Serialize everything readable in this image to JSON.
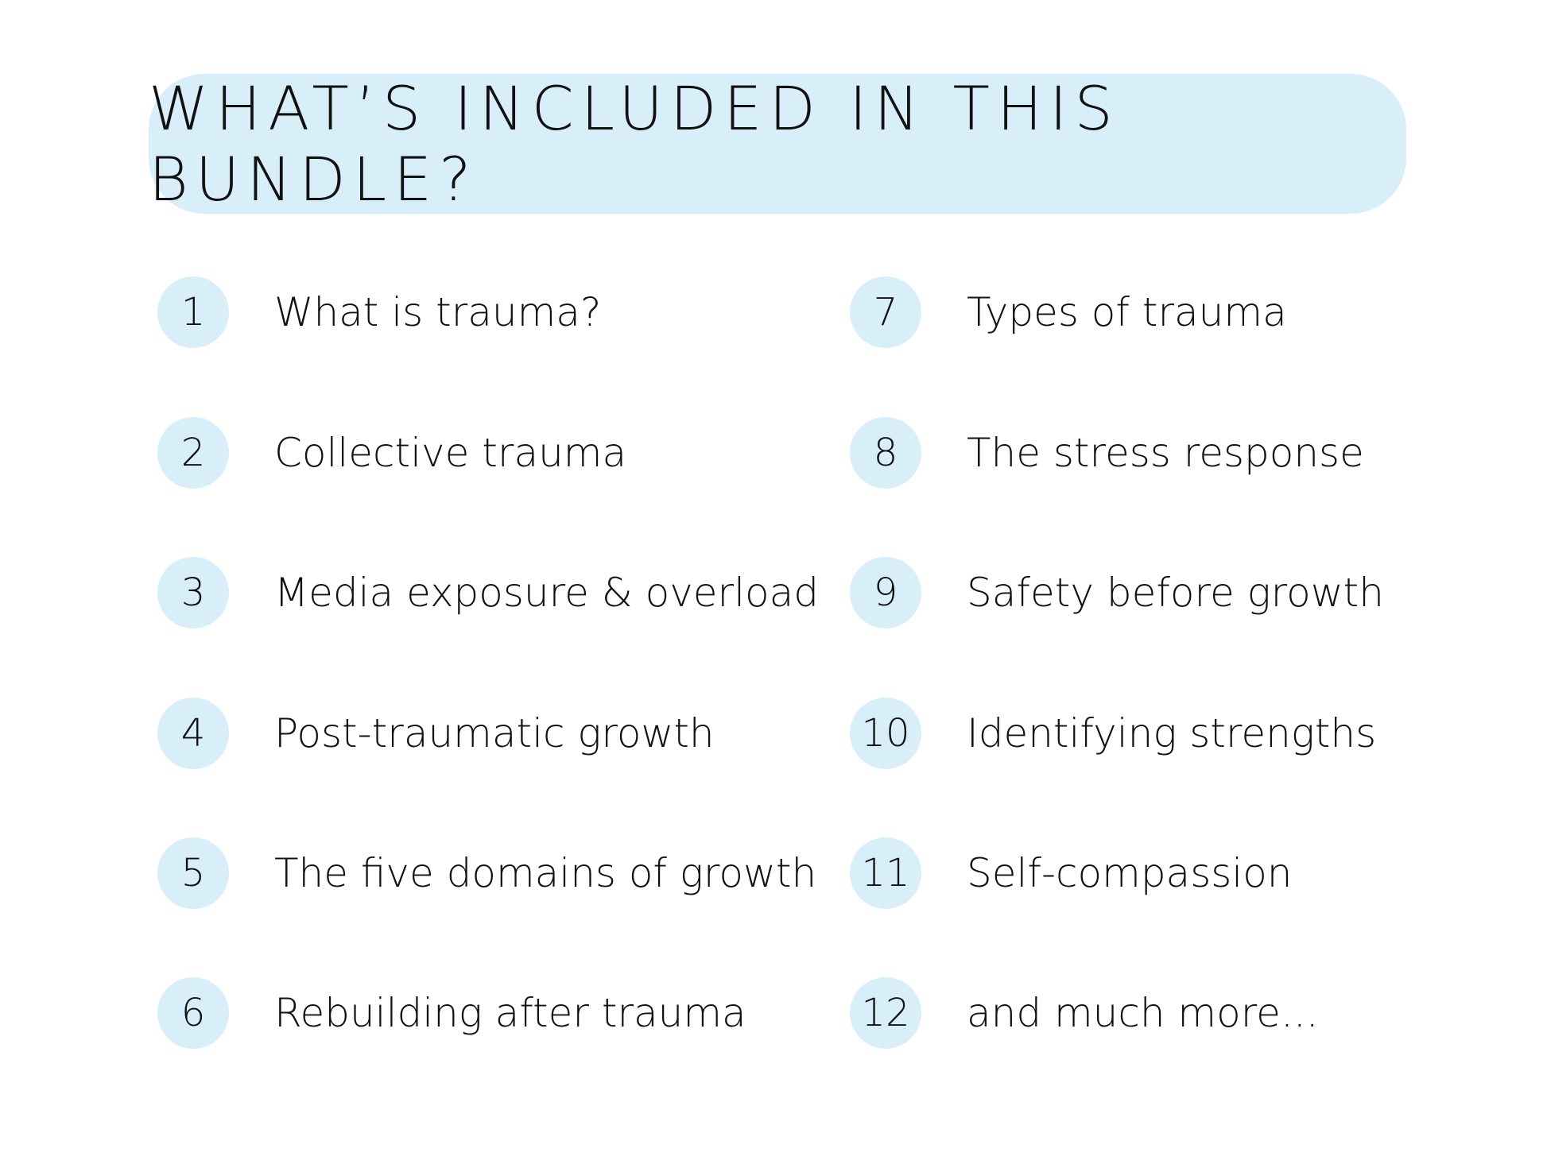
{
  "title": "WHAT’S INCLUDED IN THIS BUNDLE?",
  "colors": {
    "accent": "#d8eef8",
    "text": "#111111"
  },
  "left_items": [
    {
      "number": "1",
      "label": "What is trauma?"
    },
    {
      "number": "2",
      "label": "Collective trauma"
    },
    {
      "number": "3",
      "label": "Media exposure & overload"
    },
    {
      "number": "4",
      "label": "Post-traumatic growth"
    },
    {
      "number": "5",
      "label": "The five domains of growth"
    },
    {
      "number": "6",
      "label": "Rebuilding after trauma"
    }
  ],
  "right_items": [
    {
      "number": "7",
      "label": "Types of trauma"
    },
    {
      "number": "8",
      "label": "The stress response"
    },
    {
      "number": "9",
      "label": "Safety before growth"
    },
    {
      "number": "10",
      "label": "Identifying strengths"
    },
    {
      "number": "11",
      "label": "Self-compassion"
    },
    {
      "number": "12",
      "label": "and much more..."
    }
  ]
}
